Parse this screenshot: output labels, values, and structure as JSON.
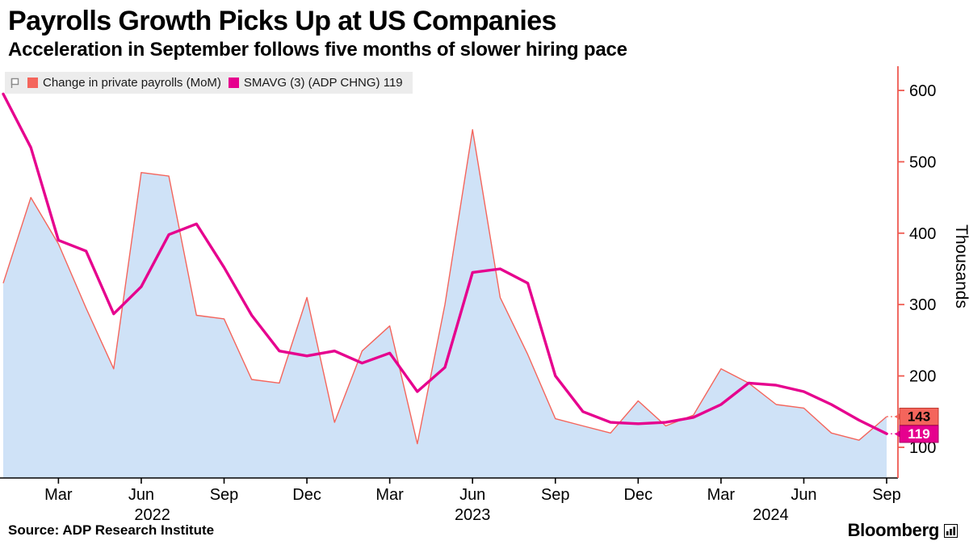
{
  "header": {
    "title": "Payrolls Growth Picks Up at US Companies",
    "subtitle": "Acceleration in September follows five months of slower hiring pace"
  },
  "legend": {
    "items": [
      {
        "label": "Change in private payrolls (MoM)",
        "color": "#f4655c"
      },
      {
        "label": "SMAVG (3) (ADP CHNG) 119",
        "color": "#e6008e"
      }
    ]
  },
  "footer": {
    "source": "Source: ADP Research Institute",
    "brand": "Bloomberg"
  },
  "chart_data": {
    "type": "area",
    "title": "Payrolls Growth Picks Up at US Companies",
    "subtitle": "Acceleration in September follows five months of slower hiring pace",
    "x_unit": "month",
    "months": [
      "Jan 2022",
      "Feb 2022",
      "Mar 2022",
      "Apr 2022",
      "May 2022",
      "Jun 2022",
      "Jul 2022",
      "Aug 2022",
      "Sep 2022",
      "Oct 2022",
      "Nov 2022",
      "Dec 2022",
      "Jan 2023",
      "Feb 2023",
      "Mar 2023",
      "Apr 2023",
      "May 2023",
      "Jun 2023",
      "Jul 2023",
      "Aug 2023",
      "Sep 2023",
      "Oct 2023",
      "Nov 2023",
      "Dec 2023",
      "Jan 2024",
      "Feb 2024",
      "Mar 2024",
      "Apr 2024",
      "May 2024",
      "Jun 2024",
      "Jul 2024",
      "Aug 2024",
      "Sep 2024"
    ],
    "series": [
      {
        "name": "Change in private payrolls (MoM)",
        "type": "area",
        "color": "#f4655c",
        "fill": "#cfe2f7",
        "values": [
          330,
          450,
          385,
          295,
          210,
          485,
          480,
          285,
          280,
          195,
          190,
          310,
          135,
          235,
          270,
          105,
          300,
          545,
          310,
          230,
          140,
          130,
          120,
          165,
          130,
          145,
          210,
          190,
          160,
          155,
          120,
          110,
          143
        ]
      },
      {
        "name": "SMAVG (3) (ADP CHNG)",
        "type": "line",
        "color": "#e6008e",
        "values": [
          595,
          520,
          390,
          375,
          287,
          325,
          398,
          413,
          352,
          285,
          235,
          228,
          235,
          218,
          232,
          178,
          212,
          345,
          350,
          330,
          200,
          150,
          135,
          133,
          135,
          142,
          160,
          190,
          187,
          178,
          160,
          138,
          119
        ]
      }
    ],
    "last_values": {
      "payrolls": 143,
      "smavg": 119
    },
    "badge_colors": {
      "payrolls_bg": "#f4655c",
      "payrolls_text": "#000000",
      "smavg_bg": "#e6008e",
      "smavg_text": "#ffffff"
    },
    "y_axis": {
      "label": "Thousands",
      "ticks": [
        100,
        200,
        300,
        400,
        500,
        600
      ],
      "range_min": 57,
      "range_max": 634,
      "axis_color": "#ef5a50"
    },
    "x_ticks": [
      {
        "label": "Mar",
        "index": 2
      },
      {
        "label": "Jun",
        "index": 5
      },
      {
        "label": "Sep",
        "index": 8
      },
      {
        "label": "Dec",
        "index": 11
      },
      {
        "label": "Mar",
        "index": 14
      },
      {
        "label": "Jun",
        "index": 17
      },
      {
        "label": "Sep",
        "index": 20
      },
      {
        "label": "Dec",
        "index": 23
      },
      {
        "label": "Mar",
        "index": 26
      },
      {
        "label": "Jun",
        "index": 29
      },
      {
        "label": "Sep",
        "index": 32
      }
    ],
    "year_labels": [
      {
        "label": "2022",
        "index": 5.4
      },
      {
        "label": "2023",
        "index": 17
      },
      {
        "label": "2024",
        "index": 27.8
      }
    ],
    "legend_note": "grid off, legend top-left, y axis on right"
  }
}
